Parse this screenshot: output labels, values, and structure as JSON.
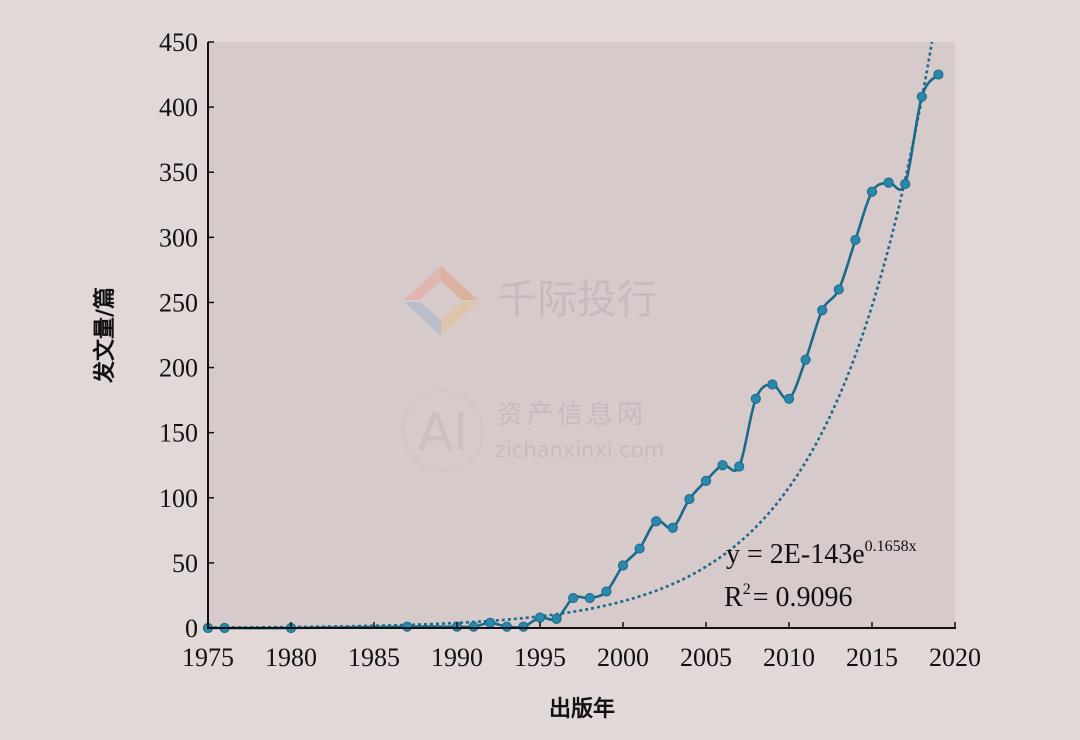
{
  "chart_data": {
    "type": "line",
    "xlabel": "出版年",
    "ylabel": "发文量/篇",
    "xlim": [
      1975,
      2020
    ],
    "ylim": [
      0,
      450
    ],
    "x_ticks": [
      1975,
      1980,
      1985,
      1990,
      1995,
      2000,
      2005,
      2010,
      2015,
      2020
    ],
    "y_ticks": [
      0,
      50,
      100,
      150,
      200,
      250,
      300,
      350,
      400,
      450
    ],
    "grid": false,
    "legend": "none",
    "colors": {
      "series": "#1a6a8c",
      "marker": "#2b88ad",
      "plot_bg": "#d6cacb",
      "page_bg": "#e2d8d7"
    },
    "series": [
      {
        "style": "solid-smooth-with-markers",
        "x": [
          1975,
          1976,
          1980,
          1987,
          1990,
          1991,
          1992,
          1993,
          1994,
          1995,
          1996,
          1997,
          1998,
          1999,
          2000,
          2001,
          2002,
          2003,
          2004,
          2005,
          2006,
          2007,
          2008,
          2009,
          2010,
          2011,
          2012,
          2013,
          2014,
          2015,
          2016,
          2017,
          2018,
          2019
        ],
        "y": [
          0,
          0,
          0,
          1,
          1,
          1,
          4,
          1,
          1,
          8,
          7,
          23,
          23,
          28,
          48,
          61,
          82,
          77,
          99,
          113,
          125,
          124,
          176,
          187,
          176,
          206,
          244,
          260,
          298,
          335,
          342,
          341,
          408,
          425
        ]
      },
      {
        "style": "dotted-trendline",
        "equation": {
          "a": 2e-143,
          "b": 0.1658
        }
      }
    ],
    "annotations": {
      "equation_prefix": "y = 2E-143e",
      "equation_exponent": "0.1658x",
      "r2_prefix": "R",
      "r2_superscript": "2",
      "r2_value": "= 0.9096"
    }
  },
  "watermark": {
    "brand_name": "千际投行",
    "logo_text": "AI",
    "site_name": "资产信息网",
    "site_url": "zichanxinxi.com"
  }
}
